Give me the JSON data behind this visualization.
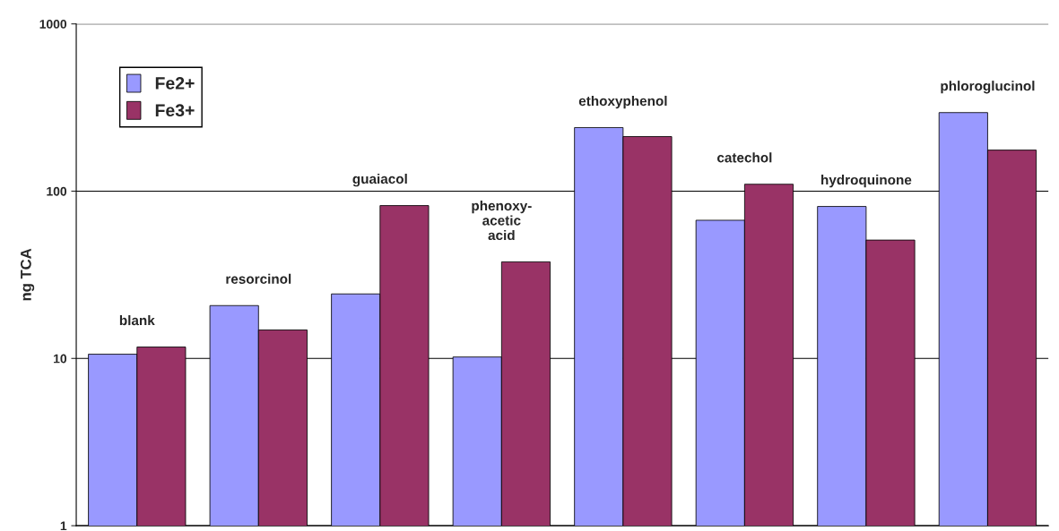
{
  "chart_data": {
    "type": "bar",
    "ylabel": "ng TCA",
    "categories": [
      "blank",
      "resorcinol",
      "guaiacol",
      "phenoxy-\nacetic\nacid",
      "ethoxyphenol",
      "catechol",
      "hydroquinone",
      "phloroglucinol"
    ],
    "series": [
      {
        "name": "Fe2+",
        "color": "#9999ff",
        "values": [
          10.6,
          20.7,
          24.3,
          10.2,
          240,
          67,
          81,
          295
        ]
      },
      {
        "name": "Fe3+",
        "color": "#993366",
        "values": [
          11.7,
          14.8,
          82,
          37.8,
          212,
          110,
          51,
          176
        ]
      }
    ],
    "log": "y",
    "ylim": [
      1,
      1000
    ],
    "yticks": [
      1,
      10,
      100,
      1000
    ],
    "grid": "y",
    "legend": "top left",
    "tick_labels": "y"
  }
}
